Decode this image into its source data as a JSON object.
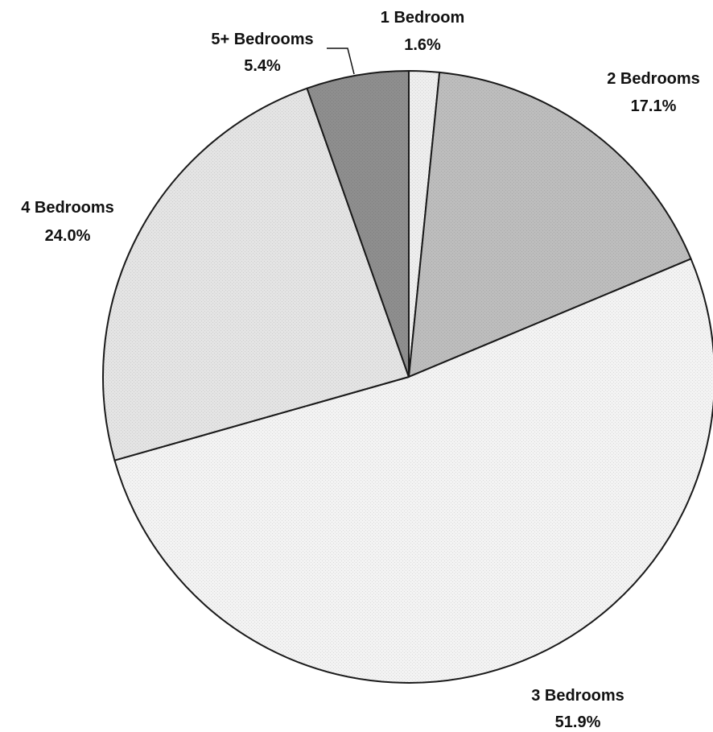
{
  "chart_data": {
    "type": "pie",
    "title": "",
    "slices": [
      {
        "label": "1 Bedroom",
        "value": 1.6,
        "value_label": "1.6%",
        "color": "#eeeeee"
      },
      {
        "label": "2 Bedrooms",
        "value": 17.1,
        "value_label": "17.1%",
        "color": "#bdbdbd"
      },
      {
        "label": "3 Bedrooms",
        "value": 51.9,
        "value_label": "51.9%",
        "color": "#f3f3f3"
      },
      {
        "label": "4 Bedrooms",
        "value": 24.0,
        "value_label": "24.0%",
        "color": "#e4e4e4"
      },
      {
        "label": "5+ Bedrooms",
        "value": 5.4,
        "value_label": "5.4%",
        "color": "#8e8e8e"
      }
    ],
    "start_angle": "12 o'clock",
    "direction": "clockwise",
    "legend": "none (direct slice labels)"
  }
}
